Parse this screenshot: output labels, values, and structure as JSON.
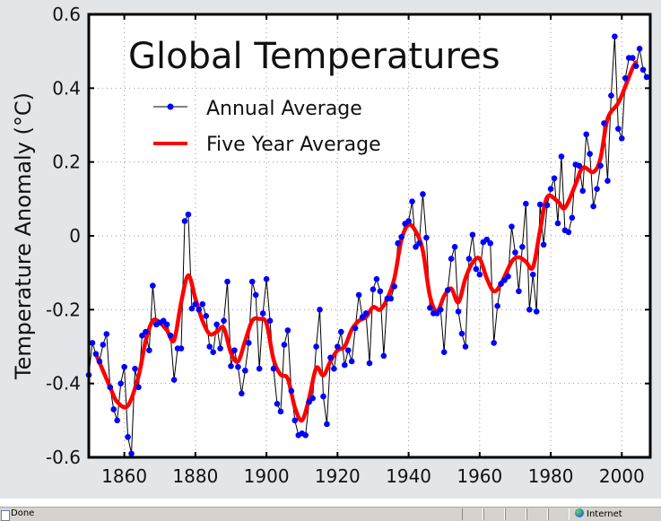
{
  "chart_data": {
    "type": "line",
    "title": "Global Temperatures",
    "xlabel": "",
    "ylabel": "Temperature Anomaly (°C)",
    "xlim": [
      1850,
      2008
    ],
    "ylim": [
      -0.6,
      0.6
    ],
    "x_ticks": [
      "1860",
      "1880",
      "1900",
      "1920",
      "1940",
      "1960",
      "1980",
      "2000"
    ],
    "y_ticks": [
      "0.6",
      "0.4",
      "0.2",
      "0",
      "-0.2",
      "-0.4",
      "-0.6"
    ],
    "grid": true,
    "legend_position": "top-left",
    "series": [
      {
        "name": "Annual Average",
        "color": "#0000ff",
        "line_color": "#000000",
        "marker": "dot",
        "x_start": 1850,
        "values": [
          -0.377,
          -0.29,
          -0.32,
          -0.34,
          -0.295,
          -0.266,
          -0.41,
          -0.47,
          -0.5,
          -0.4,
          -0.355,
          -0.545,
          -0.59,
          -0.36,
          -0.41,
          -0.27,
          -0.26,
          -0.31,
          -0.135,
          -0.24,
          -0.235,
          -0.23,
          -0.24,
          -0.27,
          -0.39,
          -0.305,
          -0.305,
          0.04,
          0.058,
          -0.197,
          -0.185,
          -0.2,
          -0.185,
          -0.217,
          -0.3,
          -0.315,
          -0.24,
          -0.305,
          -0.23,
          -0.124,
          -0.353,
          -0.31,
          -0.355,
          -0.427,
          -0.365,
          -0.29,
          -0.124,
          -0.16,
          -0.36,
          -0.21,
          -0.117,
          -0.23,
          -0.36,
          -0.455,
          -0.476,
          -0.295,
          -0.256,
          -0.42,
          -0.5,
          -0.54,
          -0.535,
          -0.54,
          -0.45,
          -0.44,
          -0.3,
          -0.2,
          -0.435,
          -0.51,
          -0.33,
          -0.36,
          -0.3,
          -0.26,
          -0.35,
          -0.31,
          -0.34,
          -0.25,
          -0.16,
          -0.22,
          -0.21,
          -0.345,
          -0.145,
          -0.117,
          -0.15,
          -0.325,
          -0.17,
          -0.17,
          -0.137,
          -0.02,
          -0.003,
          0.033,
          0.04,
          0.093,
          -0.03,
          -0.02,
          0.113,
          -0.005,
          -0.195,
          -0.21,
          -0.21,
          -0.2,
          -0.315,
          -0.147,
          -0.062,
          -0.03,
          -0.205,
          -0.265,
          -0.3,
          -0.062,
          0.003,
          -0.09,
          -0.105,
          -0.017,
          -0.01,
          -0.02,
          -0.29,
          -0.19,
          -0.13,
          -0.12,
          -0.11,
          0.025,
          -0.045,
          -0.15,
          -0.03,
          0.087,
          -0.2,
          -0.105,
          -0.205,
          0.085,
          -0.024,
          0.083,
          0.127,
          0.156,
          0.034,
          0.215,
          0.015,
          0.01,
          0.049,
          0.193,
          0.19,
          0.122,
          0.275,
          0.222,
          0.08,
          0.127,
          0.19,
          0.305,
          0.149,
          0.38,
          0.54,
          0.29,
          0.264,
          0.427,
          0.482,
          0.482,
          0.46,
          0.507,
          0.45,
          0.43
        ]
      },
      {
        "name": "Five Year Average",
        "color": "#ff0000",
        "points": [
          [
            1852,
            -0.32
          ],
          [
            1856,
            -0.41
          ],
          [
            1858,
            -0.45
          ],
          [
            1861,
            -0.46
          ],
          [
            1864,
            -0.38
          ],
          [
            1866,
            -0.285
          ],
          [
            1868,
            -0.23
          ],
          [
            1870,
            -0.235
          ],
          [
            1872,
            -0.256
          ],
          [
            1874,
            -0.283
          ],
          [
            1876,
            -0.18
          ],
          [
            1878,
            -0.107
          ],
          [
            1880,
            -0.17
          ],
          [
            1882,
            -0.23
          ],
          [
            1884,
            -0.266
          ],
          [
            1886,
            -0.26
          ],
          [
            1888,
            -0.25
          ],
          [
            1890,
            -0.317
          ],
          [
            1892,
            -0.34
          ],
          [
            1894,
            -0.285
          ],
          [
            1896,
            -0.23
          ],
          [
            1898,
            -0.225
          ],
          [
            1900,
            -0.237
          ],
          [
            1902,
            -0.335
          ],
          [
            1904,
            -0.376
          ],
          [
            1906,
            -0.387
          ],
          [
            1908,
            -0.465
          ],
          [
            1910,
            -0.5
          ],
          [
            1912,
            -0.44
          ],
          [
            1914,
            -0.358
          ],
          [
            1916,
            -0.378
          ],
          [
            1918,
            -0.34
          ],
          [
            1920,
            -0.31
          ],
          [
            1922,
            -0.3
          ],
          [
            1924,
            -0.254
          ],
          [
            1926,
            -0.23
          ],
          [
            1928,
            -0.22
          ],
          [
            1930,
            -0.193
          ],
          [
            1932,
            -0.2
          ],
          [
            1934,
            -0.17
          ],
          [
            1936,
            -0.115
          ],
          [
            1938,
            -0.01
          ],
          [
            1940,
            0.03
          ],
          [
            1942,
            0.012
          ],
          [
            1944,
            -0.04
          ],
          [
            1946,
            -0.163
          ],
          [
            1948,
            -0.205
          ],
          [
            1950,
            -0.163
          ],
          [
            1952,
            -0.143
          ],
          [
            1954,
            -0.18
          ],
          [
            1956,
            -0.115
          ],
          [
            1958,
            -0.073
          ],
          [
            1960,
            -0.062
          ],
          [
            1962,
            -0.115
          ],
          [
            1964,
            -0.15
          ],
          [
            1966,
            -0.13
          ],
          [
            1969,
            -0.07
          ],
          [
            1971,
            -0.058
          ],
          [
            1973,
            -0.07
          ],
          [
            1975,
            -0.085
          ],
          [
            1977,
            0.015
          ],
          [
            1979,
            0.105
          ],
          [
            1982,
            0.093
          ],
          [
            1984,
            0.076
          ],
          [
            1987,
            0.14
          ],
          [
            1989,
            0.185
          ],
          [
            1992,
            0.173
          ],
          [
            1994,
            0.21
          ],
          [
            1996,
            0.317
          ],
          [
            1999,
            0.36
          ],
          [
            2001,
            0.405
          ],
          [
            2003,
            0.454
          ],
          [
            2004,
            0.47
          ]
        ]
      }
    ]
  },
  "statusbar": {
    "status_text": "Done",
    "zone_text": "Internet",
    "page_icon": "page-icon",
    "zone_icon": "globe-icon"
  }
}
